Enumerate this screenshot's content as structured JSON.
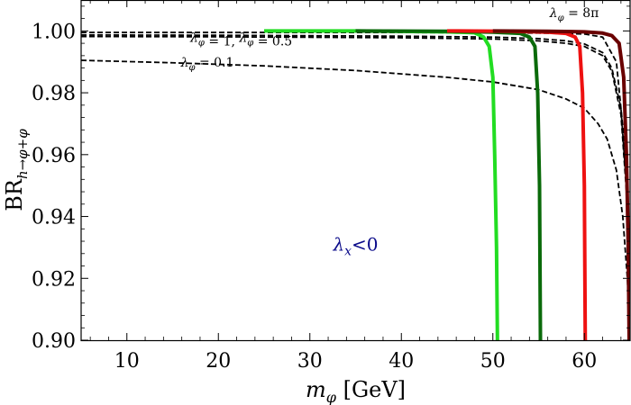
{
  "chart_data": {
    "type": "line",
    "title": "",
    "xlabel": "m_φ [GeV]",
    "xlabel_var": "m",
    "xlabel_sub": "φ",
    "xlabel_unit": " [GeV]",
    "ylabel_prefix": "BR",
    "ylabel_sub": "h→φ+φ",
    "xlim": [
      5,
      65
    ],
    "ylim": [
      0.9,
      1.01
    ],
    "xticks": [
      10,
      20,
      30,
      40,
      50,
      60
    ],
    "xtick_labels": [
      "10",
      "20",
      "30",
      "40",
      "50",
      "60"
    ],
    "yticks": [
      0.9,
      0.92,
      0.94,
      0.96,
      0.98,
      1.0
    ],
    "ytick_labels": [
      "0.90",
      "0.92",
      "0.94",
      "0.96",
      "0.98",
      "1.00"
    ],
    "grid": false,
    "region_label": {
      "text": "λx<0",
      "var": "λ",
      "sub": "x",
      "rest": "<0",
      "color": "#0b0b8a",
      "at": [
        35,
        0.929
      ]
    },
    "annotations": [
      {
        "text": "λφ = 8π",
        "var": "λ",
        "sub": "φ",
        "rest": " = 8π",
        "at": [
          58.9,
          1.0045
        ]
      },
      {
        "text": "λφ = 1, λφ = 0.5",
        "parts": [
          "λ",
          "φ",
          " = 1, ",
          "λ",
          "φ",
          " = 0.5"
        ],
        "at": [
          22.5,
          0.9965
        ]
      },
      {
        "text": "λφ = 0.1",
        "var": "λ",
        "sub": "φ",
        "rest": " = 0.1",
        "at": [
          18.8,
          0.9884
        ]
      }
    ],
    "series": [
      {
        "name": "λφ = 8π",
        "style": "dashed",
        "color": "#000000",
        "x": [
          5,
          20,
          40,
          55,
          60,
          62,
          63.5,
          64.5,
          65
        ],
        "y": [
          0.9995,
          0.9995,
          0.9995,
          0.9993,
          0.999,
          0.998,
          0.99,
          0.96,
          0.9
        ]
      },
      {
        "name": "λφ = 1",
        "style": "dashed",
        "color": "#000000",
        "x": [
          5,
          20,
          40,
          50,
          55,
          58,
          60,
          62,
          63,
          64,
          64.6,
          65
        ],
        "y": [
          0.9987,
          0.9986,
          0.9983,
          0.998,
          0.9975,
          0.9968,
          0.9958,
          0.993,
          0.988,
          0.975,
          0.95,
          0.9
        ]
      },
      {
        "name": "λφ = 0.5",
        "style": "dashed",
        "color": "#000000",
        "x": [
          5,
          20,
          40,
          50,
          55,
          58,
          60,
          62,
          63,
          64,
          64.6,
          65
        ],
        "y": [
          0.9982,
          0.9981,
          0.9978,
          0.9974,
          0.9968,
          0.996,
          0.995,
          0.992,
          0.987,
          0.973,
          0.948,
          0.9
        ]
      },
      {
        "name": "λφ = 0.1",
        "style": "dashed",
        "color": "#000000",
        "x": [
          5,
          15,
          25,
          35,
          45,
          50,
          55,
          58,
          60,
          61.5,
          62.5,
          63.5,
          64.2,
          64.7,
          65
        ],
        "y": [
          0.9905,
          0.9897,
          0.9887,
          0.9872,
          0.985,
          0.9835,
          0.981,
          0.978,
          0.975,
          0.97,
          0.965,
          0.955,
          0.94,
          0.92,
          0.9
        ]
      },
      {
        "name": "scan light green",
        "style": "solid",
        "color": "#22dd22",
        "x": [
          25,
          35,
          45,
          48,
          49,
          49.6,
          50.0,
          50.2,
          50.4,
          50.5
        ],
        "y": [
          1.0,
          1.0,
          0.9997,
          0.9994,
          0.998,
          0.995,
          0.985,
          0.96,
          0.93,
          0.9
        ]
      },
      {
        "name": "scan dark green",
        "style": "solid",
        "color": "#0a6a0a",
        "x": [
          35,
          45,
          50,
          53,
          54,
          54.6,
          54.9,
          55.1,
          55.2
        ],
        "y": [
          1.0,
          0.9999,
          0.9996,
          0.9992,
          0.998,
          0.995,
          0.98,
          0.95,
          0.9
        ]
      },
      {
        "name": "scan red",
        "style": "solid",
        "color": "#ee1111",
        "x": [
          45,
          52,
          56,
          58,
          59,
          59.5,
          59.8,
          60.0,
          60.1
        ],
        "y": [
          1.0,
          0.9999,
          0.9996,
          0.9992,
          0.998,
          0.995,
          0.98,
          0.95,
          0.9
        ]
      },
      {
        "name": "scan dark red",
        "style": "solid",
        "color": "#6a0000",
        "x": [
          50,
          56,
          60,
          62,
          63,
          63.8,
          64.3,
          64.6,
          64.8,
          64.9
        ],
        "y": [
          1.0,
          0.9999,
          0.9997,
          0.9993,
          0.9985,
          0.996,
          0.985,
          0.96,
          0.93,
          0.9
        ]
      }
    ]
  }
}
